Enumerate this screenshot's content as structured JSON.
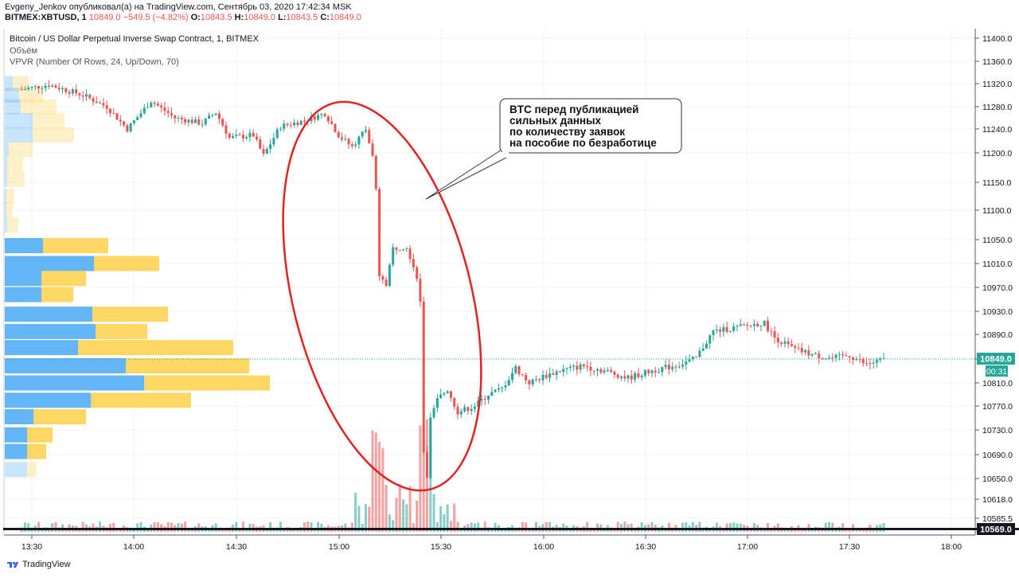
{
  "header": {
    "line1": "Evgeny_Jenkov опубликовал(а) на TradingView.com, Сентябрь 03, 2020 17:42:34 MSK",
    "ticker": "BITMEX:XBTUSD, 1",
    "last": "10849.0",
    "change": "−549.5 (−4.82%)",
    "o_label": "O:",
    "o": "10843.5",
    "h_label": "H:",
    "h": "10849.0",
    "l_label": "L:",
    "l": "10843.5",
    "c_label": "C:",
    "c": "10849.0"
  },
  "legend": {
    "title": "Bitcoin / US Dollar Perpetual Inverse Swap Contract, 1, BITMEX",
    "volume": "Объём",
    "vpvr": "VPVR (Number Of Rows, 24, Up/Down, 70)"
  },
  "annotation": {
    "lines": [
      "BTC перед публикацией",
      "сильных данных",
      "по количеству заявок",
      "на пособие по безработице"
    ]
  },
  "price_badge": "10849.0",
  "countdown_badge": "00:31",
  "low_badge": "10569.0",
  "footer": {
    "brand": "TradingView"
  },
  "colors": {
    "up": "#26a69a",
    "down": "#ef5350",
    "vp_up": "#64b5f6",
    "vp_down": "#fdd663",
    "ellipse": "#e32222"
  },
  "chart_data": {
    "type": "candlestick",
    "title": "Bitcoin / US Dollar Perpetual Inverse Swap Contract, 1, BITMEX",
    "x_ticks": [
      "13:30",
      "14:00",
      "14:30",
      "15:00",
      "15:30",
      "16:00",
      "16:30",
      "17:00",
      "17:30",
      "18:00"
    ],
    "y_ticks": [
      11400,
      11360,
      11320,
      11280,
      11240,
      11200,
      11150,
      11100,
      11050,
      11010,
      10970,
      10930,
      10890,
      10849,
      10810,
      10770,
      10730,
      10690,
      10650,
      10618,
      10585.5
    ],
    "y_tick_labels": [
      "11400.0",
      "11360.0",
      "11320.0",
      "11280.0",
      "11240.0",
      "11200.0",
      "11150.0",
      "11100.0",
      "11050.0",
      "11010.0",
      "10970.0",
      "10930.0",
      "10890.0",
      "10849.0",
      "10810.0",
      "10770.0",
      "10730.0",
      "10690.0",
      "10650.0",
      "10618.0",
      "10585.5"
    ],
    "grid": true,
    "price_path": [
      [
        "13:27",
        11310
      ],
      [
        "13:35",
        11318
      ],
      [
        "13:45",
        11300
      ],
      [
        "13:52",
        11280
      ],
      [
        "13:58",
        11240
      ],
      [
        "14:05",
        11290
      ],
      [
        "14:12",
        11260
      ],
      [
        "14:20",
        11250
      ],
      [
        "14:24",
        11270
      ],
      [
        "14:28",
        11225
      ],
      [
        "14:35",
        11230
      ],
      [
        "14:38",
        11195
      ],
      [
        "14:43",
        11245
      ],
      [
        "14:50",
        11255
      ],
      [
        "14:56",
        11268
      ],
      [
        "15:00",
        11230
      ],
      [
        "15:04",
        11210
      ],
      [
        "15:08",
        11240
      ],
      [
        "15:10",
        11195
      ],
      [
        "15:11",
        11150
      ],
      [
        "15:12",
        10990
      ],
      [
        "15:14",
        10975
      ],
      [
        "15:16",
        11035
      ],
      [
        "15:20",
        11040
      ],
      [
        "15:23",
        10990
      ],
      [
        "15:24",
        10960
      ],
      [
        "15:25",
        10700
      ],
      [
        "15:26",
        10640
      ],
      [
        "15:27",
        10745
      ],
      [
        "15:29",
        10780
      ],
      [
        "15:32",
        10800
      ],
      [
        "15:35",
        10760
      ],
      [
        "15:40",
        10770
      ],
      [
        "15:44",
        10790
      ],
      [
        "15:48",
        10800
      ],
      [
        "15:52",
        10835
      ],
      [
        "15:56",
        10810
      ],
      [
        "16:00",
        10820
      ],
      [
        "16:05",
        10830
      ],
      [
        "16:12",
        10838
      ],
      [
        "16:18",
        10830
      ],
      [
        "16:25",
        10818
      ],
      [
        "16:32",
        10830
      ],
      [
        "16:40",
        10840
      ],
      [
        "16:45",
        10850
      ],
      [
        "16:50",
        10895
      ],
      [
        "16:55",
        10900
      ],
      [
        "17:00",
        10905
      ],
      [
        "17:05",
        10910
      ],
      [
        "17:08",
        10885
      ],
      [
        "17:14",
        10865
      ],
      [
        "17:20",
        10855
      ],
      [
        "17:25",
        10850
      ],
      [
        "17:30",
        10855
      ],
      [
        "17:35",
        10840
      ],
      [
        "17:41",
        10849
      ]
    ],
    "volume_profile": {
      "rows": [
        {
          "price": 11320,
          "up": 10,
          "down": 20,
          "faded": true
        },
        {
          "price": 11300,
          "up": 18,
          "down": 30,
          "faded": true
        },
        {
          "price": 11280,
          "up": 20,
          "down": 45,
          "faded": true
        },
        {
          "price": 11255,
          "up": 35,
          "down": 40,
          "faded": true
        },
        {
          "price": 11230,
          "up": 35,
          "down": 52,
          "faded": true
        },
        {
          "price": 11205,
          "up": 5,
          "down": 30,
          "faded": true
        },
        {
          "price": 11180,
          "up": 3,
          "down": 20,
          "faded": true
        },
        {
          "price": 11155,
          "up": 3,
          "down": 22,
          "faded": true
        },
        {
          "price": 11125,
          "up": 2,
          "down": 10,
          "faded": true
        },
        {
          "price": 11100,
          "up": 2,
          "down": 8,
          "faded": true
        },
        {
          "price": 11075,
          "up": 3,
          "down": 14,
          "faded": true
        },
        {
          "price": 11040,
          "up": 48,
          "down": 82
        },
        {
          "price": 11010,
          "up": 112,
          "down": 82
        },
        {
          "price": 10985,
          "up": 46,
          "down": 56
        },
        {
          "price": 10958,
          "up": 46,
          "down": 40
        },
        {
          "price": 10925,
          "up": 110,
          "down": 95
        },
        {
          "price": 10895,
          "up": 114,
          "down": 65
        },
        {
          "price": 10868,
          "up": 92,
          "down": 195
        },
        {
          "price": 10838,
          "up": 152,
          "down": 155
        },
        {
          "price": 10810,
          "up": 175,
          "down": 158
        },
        {
          "price": 10780,
          "up": 108,
          "down": 126
        },
        {
          "price": 10752,
          "up": 36,
          "down": 66
        },
        {
          "price": 10722,
          "up": 28,
          "down": 32
        },
        {
          "price": 10695,
          "up": 28,
          "down": 24
        },
        {
          "price": 10665,
          "up": 28,
          "down": 12,
          "faded": true
        }
      ]
    }
  }
}
